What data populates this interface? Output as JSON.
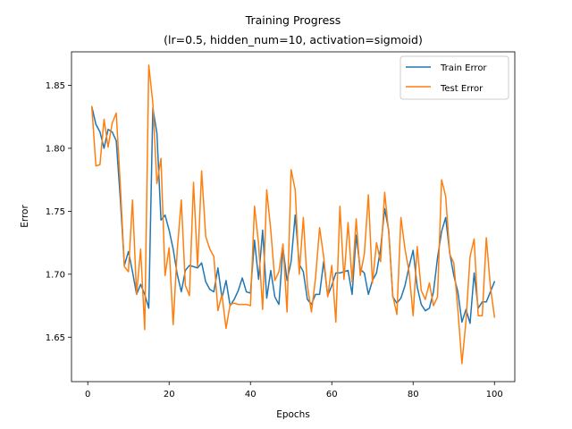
{
  "chart_data": {
    "type": "line",
    "title": "Training Progress",
    "subtitle": "(lr=0.5, hidden_num=10, activation=sigmoid)",
    "xlabel": "Epochs",
    "ylabel": "Error",
    "xlim": [
      -4,
      105
    ],
    "ylim": [
      1.6147,
      1.8766
    ],
    "xticks": [
      0,
      20,
      40,
      60,
      80,
      100
    ],
    "yticks": [
      1.65,
      1.7,
      1.75,
      1.8,
      1.85
    ],
    "xtick_labels": [
      "0",
      "20",
      "40",
      "60",
      "80",
      "100"
    ],
    "ytick_labels": [
      "1.65",
      "1.70",
      "1.75",
      "1.80",
      "1.85"
    ],
    "legend_position": "top-right",
    "grid": false,
    "x": [
      1,
      2,
      3,
      4,
      5,
      6,
      7,
      8,
      9,
      10,
      11,
      12,
      13,
      14,
      15,
      16,
      17,
      18,
      19,
      20,
      21,
      22,
      23,
      24,
      25,
      26,
      27,
      28,
      29,
      30,
      31,
      32,
      33,
      34,
      35,
      36,
      37,
      38,
      39,
      40,
      41,
      42,
      43,
      44,
      45,
      46,
      47,
      48,
      49,
      50,
      51,
      52,
      53,
      54,
      55,
      56,
      57,
      58,
      59,
      60,
      61,
      62,
      63,
      64,
      65,
      66,
      67,
      68,
      69,
      70,
      71,
      72,
      73,
      74,
      75,
      76,
      77,
      78,
      79,
      80,
      81,
      82,
      83,
      84,
      85,
      86,
      87,
      88,
      89,
      90,
      91,
      92,
      93,
      94,
      95,
      96,
      97,
      98,
      99,
      100
    ],
    "series": [
      {
        "name": "Train Error",
        "color": "#1f77b4",
        "values": [
          1.833,
          1.819,
          1.813,
          1.8,
          1.815,
          1.813,
          1.806,
          1.76,
          1.707,
          1.718,
          1.702,
          1.684,
          1.692,
          1.684,
          1.673,
          1.832,
          1.812,
          1.743,
          1.747,
          1.735,
          1.72,
          1.7,
          1.686,
          1.703,
          1.707,
          1.706,
          1.705,
          1.709,
          1.694,
          1.688,
          1.686,
          1.705,
          1.681,
          1.695,
          1.675,
          1.68,
          1.687,
          1.697,
          1.686,
          1.685,
          1.727,
          1.696,
          1.735,
          1.681,
          1.703,
          1.682,
          1.676,
          1.721,
          1.695,
          1.71,
          1.747,
          1.708,
          1.702,
          1.68,
          1.676,
          1.684,
          1.684,
          1.71,
          1.683,
          1.691,
          1.701,
          1.701,
          1.702,
          1.703,
          1.684,
          1.731,
          1.704,
          1.701,
          1.684,
          1.695,
          1.701,
          1.72,
          1.752,
          1.735,
          1.682,
          1.677,
          1.681,
          1.691,
          1.706,
          1.719,
          1.69,
          1.676,
          1.671,
          1.673,
          1.686,
          1.713,
          1.734,
          1.745,
          1.717,
          1.699,
          1.686,
          1.662,
          1.672,
          1.661,
          1.701,
          1.673,
          1.678,
          1.678,
          1.686,
          1.694
        ]
      },
      {
        "name": "Test Error",
        "color": "#ff7f0e",
        "values": [
          1.833,
          1.786,
          1.787,
          1.823,
          1.801,
          1.82,
          1.828,
          1.771,
          1.706,
          1.702,
          1.759,
          1.684,
          1.72,
          1.656,
          1.866,
          1.836,
          1.772,
          1.792,
          1.699,
          1.721,
          1.66,
          1.719,
          1.759,
          1.691,
          1.683,
          1.773,
          1.706,
          1.782,
          1.73,
          1.72,
          1.714,
          1.671,
          1.684,
          1.657,
          1.676,
          1.677,
          1.676,
          1.676,
          1.676,
          1.675,
          1.754,
          1.724,
          1.672,
          1.767,
          1.735,
          1.695,
          1.702,
          1.724,
          1.67,
          1.783,
          1.767,
          1.7,
          1.745,
          1.691,
          1.67,
          1.697,
          1.737,
          1.714,
          1.682,
          1.707,
          1.662,
          1.754,
          1.696,
          1.741,
          1.694,
          1.744,
          1.699,
          1.716,
          1.763,
          1.693,
          1.725,
          1.71,
          1.765,
          1.733,
          1.683,
          1.668,
          1.745,
          1.72,
          1.702,
          1.667,
          1.722,
          1.687,
          1.68,
          1.693,
          1.675,
          1.682,
          1.775,
          1.762,
          1.716,
          1.709,
          1.672,
          1.629,
          1.663,
          1.714,
          1.728,
          1.667,
          1.667,
          1.729,
          1.69,
          1.666
        ]
      }
    ]
  }
}
